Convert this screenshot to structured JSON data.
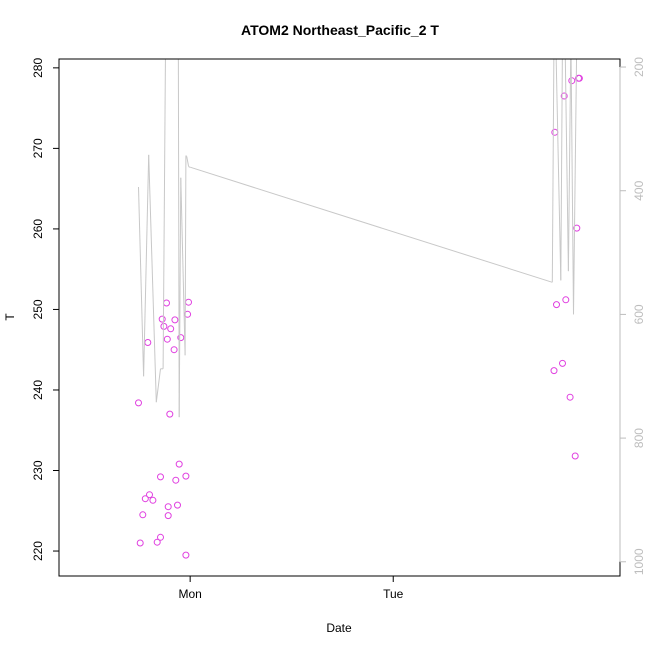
{
  "chart_data": {
    "type": "scatter",
    "title": "ATOM2 Northeast_Pacific_2 T",
    "xlabel": "Date",
    "ylabel": "T",
    "x_axis": {
      "ticks": [
        {
          "label": "Mon",
          "value": 0
        },
        {
          "label": "Tue",
          "value": 24
        }
      ],
      "unit": "hours since Mon 00:00",
      "range": [
        -15.5,
        50.8
      ]
    },
    "y_left": {
      "range": [
        216.9,
        281.1
      ],
      "ticks": [
        220,
        230,
        240,
        250,
        260,
        270,
        280
      ],
      "color": "#000000"
    },
    "y_right": {
      "range": [
        1023,
        187
      ],
      "ticks": [
        200,
        400,
        600,
        800,
        1000
      ],
      "color": "#bdbdbd"
    },
    "series": [
      {
        "kind": "points",
        "axis": "left",
        "color": "#e040e0",
        "points": [
          [
            -6.1,
            238.4
          ],
          [
            -5.9,
            221.0
          ],
          [
            -5.6,
            224.5
          ],
          [
            -5.3,
            226.5
          ],
          [
            -5.0,
            245.9
          ],
          [
            -4.8,
            227.0
          ],
          [
            -4.4,
            226.3
          ],
          [
            -3.9,
            221.1
          ],
          [
            -3.5,
            221.7
          ],
          [
            -3.5,
            229.2
          ],
          [
            -3.3,
            248.8
          ],
          [
            -3.1,
            247.9
          ],
          [
            -2.8,
            250.8
          ],
          [
            -2.7,
            246.3
          ],
          [
            -2.6,
            225.5
          ],
          [
            -2.6,
            224.4
          ],
          [
            -2.4,
            237.0
          ],
          [
            -2.3,
            247.6
          ],
          [
            -1.9,
            245.0
          ],
          [
            -1.8,
            248.7
          ],
          [
            -1.7,
            228.8
          ],
          [
            -1.5,
            225.7
          ],
          [
            -1.3,
            230.8
          ],
          [
            -1.1,
            246.5
          ],
          [
            -0.5,
            229.3
          ],
          [
            -0.5,
            219.5
          ],
          [
            -0.3,
            249.4
          ],
          [
            -0.2,
            250.9
          ],
          [
            43.0,
            242.4
          ],
          [
            43.1,
            272.0
          ],
          [
            43.3,
            250.6
          ],
          [
            44.0,
            243.3
          ],
          [
            44.2,
            276.5
          ],
          [
            44.4,
            251.2
          ],
          [
            44.9,
            239.1
          ],
          [
            45.1,
            278.4
          ],
          [
            45.5,
            231.8
          ],
          [
            45.7,
            260.1
          ],
          [
            45.9,
            278.7
          ],
          [
            46.0,
            278.7
          ]
        ]
      },
      {
        "kind": "line",
        "axis": "right",
        "color": "#c8c8c8",
        "points": [
          [
            -6.1,
            394
          ],
          [
            -5.5,
            700
          ],
          [
            -4.9,
            342
          ],
          [
            -4.0,
            742
          ],
          [
            -3.5,
            688
          ],
          [
            -3.2,
            688
          ],
          [
            -2.9,
            150
          ],
          [
            -2.6,
            150
          ],
          [
            -2.3,
            150
          ],
          [
            -1.8,
            150
          ],
          [
            -1.4,
            150
          ],
          [
            -1.3,
            766
          ],
          [
            -1.1,
            379
          ],
          [
            -0.6,
            666
          ],
          [
            -0.5,
            343
          ],
          [
            -0.4,
            345
          ],
          [
            -0.2,
            360
          ],
          [
            -0.1,
            362
          ],
          [
            0,
            362
          ],
          [
            42.8,
            548
          ],
          [
            43.0,
            150
          ],
          [
            43.2,
            150
          ],
          [
            43.8,
            545
          ],
          [
            44.0,
            150
          ],
          [
            44.3,
            150
          ],
          [
            44.7,
            530
          ],
          [
            45.0,
            150
          ],
          [
            45.3,
            600
          ],
          [
            45.7,
            150
          ],
          [
            46.0,
            150
          ]
        ]
      }
    ],
    "grid": false,
    "legend": "none"
  }
}
